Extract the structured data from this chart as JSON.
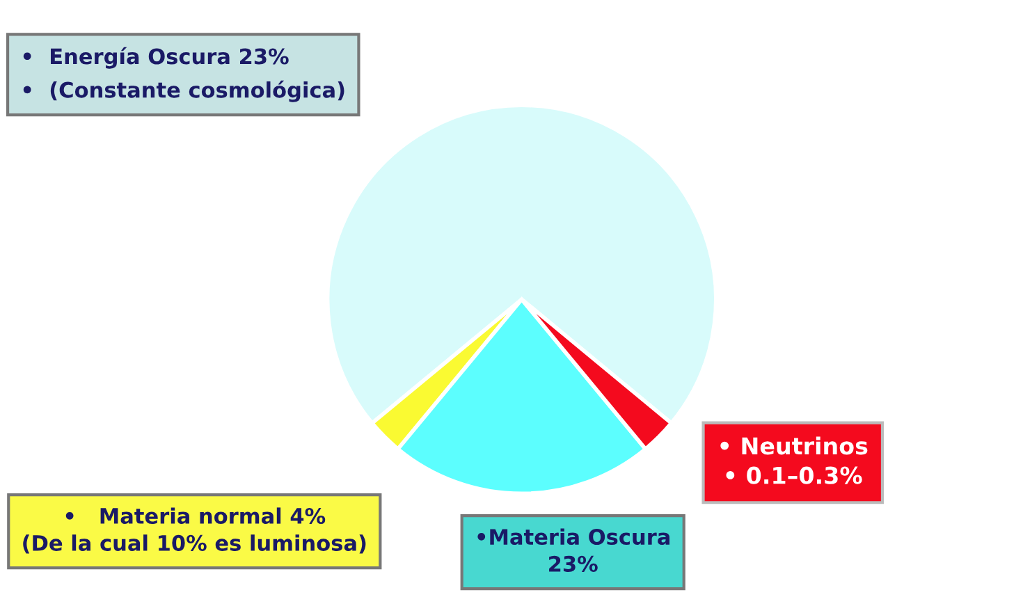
{
  "chart_data": {
    "type": "pie",
    "categories": [
      "•  Energía Oscura 23%\n•  (Constante cosmológica)",
      "•   Materia normal 4%\n(De la cual 10% es luminosa)",
      "•Materia Oscura\n23%",
      "• Neutrinos\n• 0.1–0.3%"
    ],
    "values": [
      72,
      3,
      22,
      3
    ],
    "colors": [
      "#d8fbfb",
      "#fafa32",
      "#5cfefe",
      "#f40a1e"
    ],
    "legend": false
  }
}
